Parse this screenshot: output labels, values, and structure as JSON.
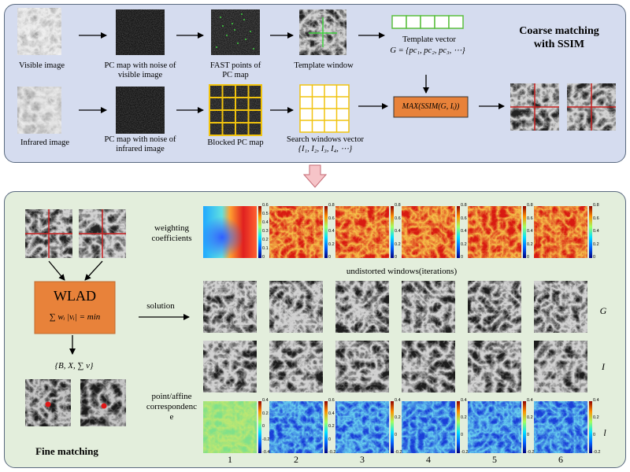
{
  "coarse": {
    "title_line1": "Coarse matching",
    "title_line2": "with SSIM",
    "visible_label": "Visible image",
    "pc_visible_line1": "PC map with noise of",
    "pc_visible_line2": "visible image",
    "fast_line1": "FAST points of",
    "fast_line2": "PC map",
    "template_window": "Template window",
    "template_vector_label": "Template vector",
    "template_vector_formula": "G = {pc₁, pc₂, pc₃, ⋯}",
    "infrared_label": "Infrared image",
    "pc_infrared_line1": "PC map with noise of",
    "pc_infrared_line2": "infrared image",
    "blocked_label": "Blocked PC map",
    "search_label": "Search windows vector",
    "search_formula": "{I₁, I₂, I₃, I₄, ⋯}",
    "max_formula": "MAX(SSIM(G, Iᵢ))"
  },
  "fine": {
    "title": "Fine matching",
    "weighting_line1": "weighting",
    "weighting_line2": "coefficients",
    "undistorted": "undistorted windows(iterations)",
    "solution": "solution",
    "wlad_title": "WLAD",
    "wlad_formula": "∑ wᵢ |vᵢ| = min",
    "result_formula": "{B, X, ∑ v}",
    "point_line1": "point/affine",
    "point_line2": "correspondenc",
    "point_line3": "e",
    "row_G": "G",
    "row_I": "I",
    "row_l": "l",
    "iterations": [
      "1",
      "2",
      "3",
      "4",
      "5",
      "6"
    ],
    "colorbar_first": [
      "0.6",
      "0.5",
      "0.4",
      "0.3",
      "0.2",
      "0.1",
      "0"
    ],
    "colorbar_rest": [
      "0.8",
      "0.6",
      "0.4",
      "0.2",
      "0"
    ],
    "colorbar_res_first": [
      "0.4",
      "0.2",
      "0",
      "-0.2",
      "-0.4"
    ],
    "colorbar_res_second": [
      "0.6",
      "0.4",
      "0.2",
      "0",
      "-0.2"
    ],
    "colorbar_res_rest": [
      "0.4",
      "0.2",
      "0",
      "-0.2"
    ]
  },
  "colors": {
    "top_panel": "#d5dcef",
    "bottom_panel": "#e3eedc",
    "accent_orange": "#e8823a",
    "grid_yellow": "#f1c30e",
    "template_green": "#5bbf3f",
    "cross_red": "#c82020",
    "down_arrow_pink": "#f6c4c8"
  }
}
